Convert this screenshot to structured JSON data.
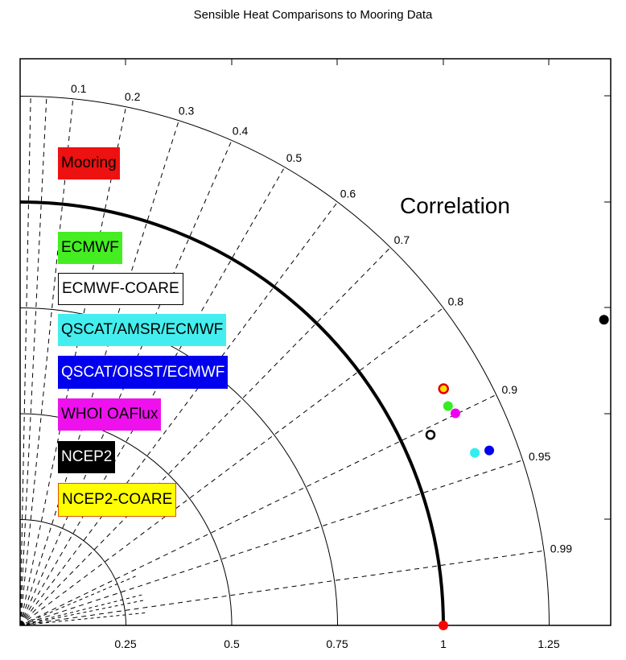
{
  "chart_data": {
    "type": "scatter",
    "subtype": "taylor-diagram",
    "title": "Sensible Heat Comparisons to Mooring Data",
    "axis_label_angular": "Correlation",
    "x_ticks": [
      "0.25",
      "0.5",
      "0.75",
      "1",
      "1.25"
    ],
    "xlim": [
      0,
      1.39
    ],
    "ylim": [
      0,
      1.34
    ],
    "correlation_ticks": [
      "0.1",
      "0.2",
      "0.3",
      "0.4",
      "0.5",
      "0.6",
      "0.7",
      "0.8",
      "0.9",
      "0.95",
      "0.99"
    ],
    "std_arcs": [
      0.25,
      0.5,
      0.75,
      1.0,
      1.25
    ],
    "reference_std": 1.0,
    "series": [
      {
        "name": "Mooring",
        "color": "#ff0000",
        "std": 1.0,
        "corr": 1.0
      },
      {
        "name": "ECMWF",
        "color": "#33ee22",
        "std": 1.136,
        "corr": 0.89
      },
      {
        "name": "ECMWF-COARE",
        "color": "#ffffff",
        "edge": "#000000",
        "std": 1.069,
        "corr": 0.907
      },
      {
        "name": "QSCAT/AMSR/ECMWF",
        "color": "#33eeee",
        "std": 1.149,
        "corr": 0.935
      },
      {
        "name": "QSCAT/OISST/ECMWF",
        "color": "#0000ee",
        "std": 1.183,
        "corr": 0.937
      },
      {
        "name": "WHOI OAFlux",
        "color": "#ee00ee",
        "std": 1.144,
        "corr": 0.899
      },
      {
        "name": "NCEP2",
        "color": "#000000",
        "std": 1.557,
        "corr": 0.886
      },
      {
        "name": "NCEP2-COARE",
        "color": "#ffff00",
        "edge": "#dd0000",
        "std": 1.146,
        "corr": 0.873
      }
    ]
  },
  "title": "Sensible Heat Comparisons to Mooring Data",
  "corr_label": "Correlation",
  "xticks": [
    "0.25",
    "0.5",
    "0.75",
    "1",
    "1.25"
  ],
  "legend": [
    "Mooring",
    "ECMWF",
    "ECMWF-COARE",
    "QSCAT/AMSR/ECMWF",
    "QSCAT/OISST/ECMWF",
    "WHOI OAFlux",
    "NCEP2",
    "NCEP2-COARE"
  ],
  "corr_ticks": [
    "0.1",
    "0.2",
    "0.3",
    "0.4",
    "0.5",
    "0.6",
    "0.7",
    "0.8",
    "0.9",
    "0.95",
    "0.99"
  ]
}
